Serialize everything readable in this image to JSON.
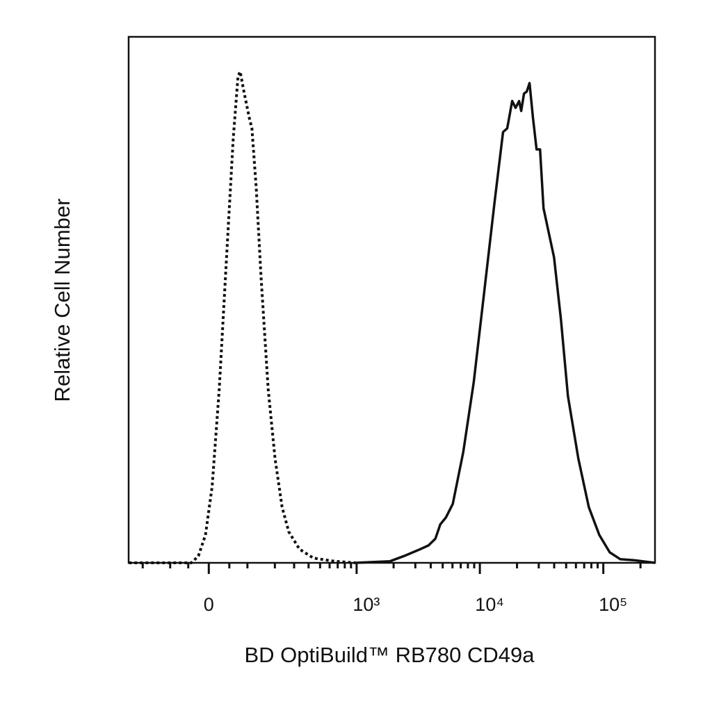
{
  "chart_data": {
    "type": "histogram-overlay",
    "xlabel": "BD OptiBuild™ RB780 CD49a",
    "ylabel": "Relative Cell Number",
    "xscale": "biexponential",
    "xlim": [
      -270,
      262144
    ],
    "ylim": [
      0,
      100
    ],
    "xticks": [
      0,
      {
        "value": 1000,
        "label": "10³"
      },
      {
        "value": 10000,
        "label": "10⁴"
      },
      {
        "value": 100000,
        "label": "10⁵"
      }
    ],
    "xminorticks": [
      -200,
      -100,
      -50,
      50,
      100,
      200,
      300,
      400,
      500,
      600,
      700,
      800,
      900,
      2000,
      3000,
      4000,
      5000,
      6000,
      7000,
      8000,
      9000,
      20000,
      30000,
      40000,
      50000,
      60000,
      70000,
      80000,
      90000,
      200000
    ],
    "series": [
      {
        "color": "#111111",
        "style": "dotted",
        "x": [
          -269,
          -42,
          -25,
          -8,
          8,
          25,
          42,
          60,
          73,
          79,
          89,
          106,
          114,
          128,
          145,
          172,
          201,
          234,
          269,
          334,
          440,
          657,
          974
        ],
        "values": [
          0,
          0,
          1.3,
          5.3,
          14.5,
          33,
          56.8,
          80.6,
          92.5,
          93.4,
          89.8,
          84.5,
          82.6,
          71.3,
          54.2,
          33,
          19.8,
          10.6,
          5.9,
          2.6,
          0.9,
          0.3,
          0
        ]
      },
      {
        "color": "#111111",
        "style": "solid",
        "x": [
          974,
          1873,
          2430,
          3153,
          3834,
          4365,
          4780,
          5303,
          6039,
          7341,
          8921,
          10850,
          13180,
          15410,
          16660,
          18260,
          19480,
          20800,
          21620,
          22770,
          23980,
          25270,
          26970,
          28790,
          30730,
          32790,
          39860,
          45390,
          51690,
          62810,
          76320,
          92740,
          112700,
          136900,
          177600,
          262000
        ],
        "values": [
          0,
          0.3,
          1.3,
          2.4,
          3.3,
          4.6,
          7.3,
          8.6,
          11.2,
          21.1,
          34.3,
          51.5,
          68.7,
          81.9,
          82.6,
          87.8,
          86.5,
          87.8,
          85.9,
          89.2,
          89.6,
          91.2,
          84.5,
          78.6,
          78.6,
          67.4,
          58.1,
          46.2,
          31.7,
          19.8,
          10.6,
          5.3,
          2,
          0.7,
          0.5,
          0
        ]
      }
    ]
  }
}
